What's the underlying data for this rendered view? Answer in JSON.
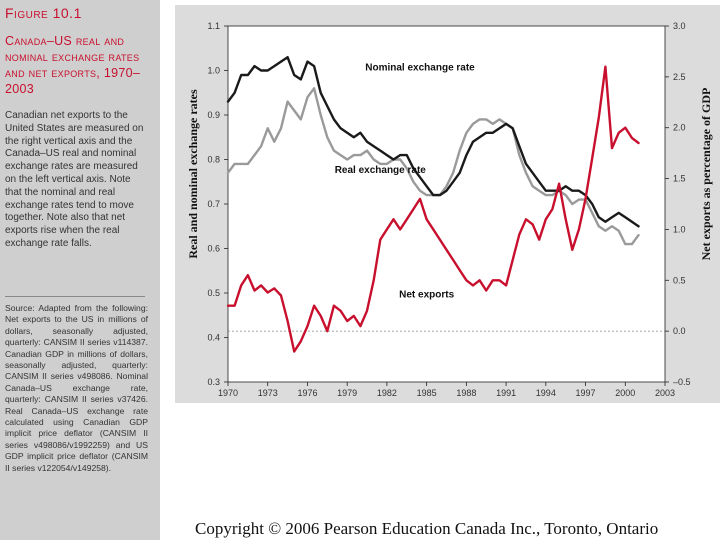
{
  "figure": {
    "label": "Figure 10.1",
    "title": "Canada–US real and nominal exchange rates and net exports, 1970–2003",
    "caption": "Canadian net exports to the United States are measured on the right vertical axis and the Canada–US real and nominal exchange rates are measured on the left vertical axis. Note that the nominal and real exchange rates tend to move together. Note also that net exports rise when the real exchange rate falls.",
    "source": "Source: Adapted from the following: Net exports to the US in millions of dollars, seasonally adjusted, quarterly: CANSIM II series v114387. Canadian GDP in millions of dollars, seasonally adjusted, quarterly: CANSIM II series v498086. Nominal Canada–US exchange rate, quarterly: CANSIM II series v37426. Real Canada–US exchange rate calculated using Canadian GDP implicit price deflator (CANSIM II series v498086/v1992259) and US GDP implicit price deflator (CANSIM II series v122054/v149258)."
  },
  "footer": {
    "copyright": "Copyright © 2006 Pearson Education Canada Inc., Toronto, Ontario"
  },
  "colors": {
    "nominal": "#1a1a1a",
    "real": "#9a9a9a",
    "net_exports": "#c8102e",
    "title": "#c8102e",
    "panel": "#dcdcdc",
    "plot_bg": "#ffffff"
  },
  "chart_data": {
    "type": "line",
    "xlabel": "",
    "ylabel_left": "Real and nominal exchange rates",
    "ylabel_right": "Net exports as percentage of GDP",
    "xlim": [
      1970,
      2003
    ],
    "ylim_left": [
      0.3,
      1.1
    ],
    "ylim_right": [
      -0.5,
      3.0
    ],
    "x_ticks": [
      "1970",
      "1973",
      "1976",
      "1979",
      "1982",
      "1985",
      "1988",
      "1991",
      "1994",
      "1997",
      "2000",
      "2003"
    ],
    "y_ticks_left": [
      "0.3",
      "0.4",
      "0.5",
      "0.6",
      "0.7",
      "0.8",
      "0.9",
      "1.0",
      "1.1"
    ],
    "y_ticks_right": [
      "–0.5",
      "0.0",
      "0.5",
      "1.0",
      "1.5",
      "2.0",
      "2.5",
      "3.0"
    ],
    "zero_line_right": 0.0,
    "grid": false,
    "series": [
      {
        "name": "Nominal exchange rate",
        "axis": "left",
        "x": [
          1970.0,
          1970.5,
          1971.0,
          1971.5,
          1972.0,
          1972.5,
          1973.0,
          1973.5,
          1974.0,
          1974.5,
          1975.0,
          1975.5,
          1976.0,
          1976.5,
          1977.0,
          1977.5,
          1978.0,
          1978.5,
          1979.0,
          1979.5,
          1980.0,
          1980.5,
          1981.0,
          1981.5,
          1982.0,
          1982.5,
          1983.0,
          1983.5,
          1984.0,
          1984.5,
          1985.0,
          1985.5,
          1986.0,
          1986.5,
          1987.0,
          1987.5,
          1988.0,
          1988.5,
          1989.0,
          1989.5,
          1990.0,
          1990.5,
          1991.0,
          1991.5,
          1992.0,
          1992.5,
          1993.0,
          1993.5,
          1994.0,
          1994.5,
          1995.0,
          1995.5,
          1996.0,
          1996.5,
          1997.0,
          1997.5,
          1998.0,
          1998.5,
          1999.0,
          1999.5,
          2000.0,
          2000.5,
          2001.0
        ],
        "y": [
          0.93,
          0.95,
          0.99,
          0.99,
          1.01,
          1.0,
          1.0,
          1.01,
          1.02,
          1.03,
          0.99,
          0.98,
          1.02,
          1.01,
          0.95,
          0.92,
          0.89,
          0.87,
          0.86,
          0.85,
          0.86,
          0.84,
          0.83,
          0.82,
          0.81,
          0.8,
          0.81,
          0.81,
          0.78,
          0.76,
          0.74,
          0.72,
          0.72,
          0.73,
          0.75,
          0.77,
          0.81,
          0.84,
          0.85,
          0.86,
          0.86,
          0.87,
          0.88,
          0.87,
          0.83,
          0.79,
          0.77,
          0.75,
          0.73,
          0.73,
          0.73,
          0.74,
          0.73,
          0.73,
          0.72,
          0.7,
          0.67,
          0.66,
          0.67,
          0.68,
          0.67,
          0.66,
          0.65
        ]
      },
      {
        "name": "Real exchange rate",
        "axis": "left",
        "x": [
          1970.0,
          1970.5,
          1971.0,
          1971.5,
          1972.0,
          1972.5,
          1973.0,
          1973.5,
          1974.0,
          1974.5,
          1975.0,
          1975.5,
          1976.0,
          1976.5,
          1977.0,
          1977.5,
          1978.0,
          1978.5,
          1979.0,
          1979.5,
          1980.0,
          1980.5,
          1981.0,
          1981.5,
          1982.0,
          1982.5,
          1983.0,
          1983.5,
          1984.0,
          1984.5,
          1985.0,
          1985.5,
          1986.0,
          1986.5,
          1987.0,
          1987.5,
          1988.0,
          1988.5,
          1989.0,
          1989.5,
          1990.0,
          1990.5,
          1991.0,
          1991.5,
          1992.0,
          1992.5,
          1993.0,
          1993.5,
          1994.0,
          1994.5,
          1995.0,
          1995.5,
          1996.0,
          1996.5,
          1997.0,
          1997.5,
          1998.0,
          1998.5,
          1999.0,
          1999.5,
          2000.0,
          2000.5,
          2001.0
        ],
        "y": [
          0.77,
          0.79,
          0.79,
          0.79,
          0.81,
          0.83,
          0.87,
          0.84,
          0.87,
          0.93,
          0.91,
          0.89,
          0.94,
          0.96,
          0.9,
          0.85,
          0.82,
          0.81,
          0.8,
          0.81,
          0.81,
          0.82,
          0.8,
          0.79,
          0.79,
          0.8,
          0.8,
          0.78,
          0.75,
          0.73,
          0.72,
          0.72,
          0.72,
          0.74,
          0.77,
          0.82,
          0.86,
          0.88,
          0.89,
          0.89,
          0.88,
          0.89,
          0.88,
          0.87,
          0.81,
          0.77,
          0.74,
          0.73,
          0.72,
          0.72,
          0.73,
          0.72,
          0.7,
          0.71,
          0.71,
          0.68,
          0.65,
          0.64,
          0.65,
          0.64,
          0.61,
          0.61,
          0.63
        ]
      },
      {
        "name": "Net exports",
        "axis": "right",
        "x": [
          1970.0,
          1970.5,
          1971.0,
          1971.5,
          1972.0,
          1972.5,
          1973.0,
          1973.5,
          1974.0,
          1974.5,
          1975.0,
          1975.5,
          1976.0,
          1976.5,
          1977.0,
          1977.5,
          1978.0,
          1978.5,
          1979.0,
          1979.5,
          1980.0,
          1980.5,
          1981.0,
          1981.5,
          1982.0,
          1982.5,
          1983.0,
          1983.5,
          1984.0,
          1984.5,
          1985.0,
          1985.5,
          1986.0,
          1986.5,
          1987.0,
          1987.5,
          1988.0,
          1988.5,
          1989.0,
          1989.5,
          1990.0,
          1990.5,
          1991.0,
          1991.5,
          1992.0,
          1992.5,
          1993.0,
          1993.5,
          1994.0,
          1994.5,
          1995.0,
          1995.5,
          1996.0,
          1996.5,
          1997.0,
          1997.5,
          1998.0,
          1998.5,
          1999.0,
          1999.5,
          2000.0,
          2000.5,
          2001.0
        ],
        "y": [
          0.25,
          0.25,
          0.45,
          0.55,
          0.4,
          0.45,
          0.38,
          0.42,
          0.35,
          0.1,
          -0.2,
          -0.1,
          0.05,
          0.25,
          0.15,
          0.0,
          0.25,
          0.2,
          0.1,
          0.15,
          0.05,
          0.2,
          0.5,
          0.9,
          1.0,
          1.1,
          1.0,
          1.1,
          1.2,
          1.3,
          1.1,
          1.0,
          0.9,
          0.8,
          0.7,
          0.6,
          0.5,
          0.45,
          0.5,
          0.4,
          0.5,
          0.5,
          0.45,
          0.7,
          0.95,
          1.1,
          1.05,
          0.9,
          1.1,
          1.2,
          1.45,
          1.1,
          0.8,
          1.0,
          1.3,
          1.7,
          2.1,
          2.6,
          1.8,
          1.95,
          2.0,
          1.9,
          1.85
        ]
      }
    ],
    "annotations": [
      {
        "text": "Nominal exchange rate",
        "x": 1984.5,
        "y": 1.0,
        "axis": "left",
        "anchor": "middle"
      },
      {
        "text": "Real exchange rate",
        "x": 1981.5,
        "y": 0.77,
        "axis": "left",
        "anchor": "middle"
      },
      {
        "text": "Net exports",
        "x": 1985.0,
        "y": 0.33,
        "axis": "right",
        "anchor": "middle"
      }
    ]
  }
}
